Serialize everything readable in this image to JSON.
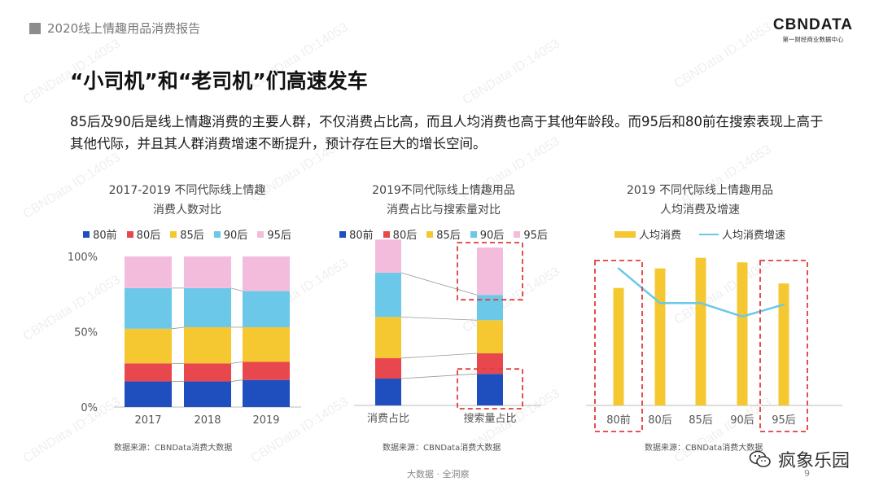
{
  "header": {
    "text": "2020线上情趣用品消费报告"
  },
  "logo": {
    "main": "CBNDATA",
    "sub": "第一财经商业数据中心"
  },
  "headline": "“小司机”和“老司机”们高速发车",
  "intro": "85后及90后是线上情趣消费的主要人群，不仅消费占比高，而且人均消费也高于其他年龄段。而95后和80前在搜索表现上高于其他代际，并且其人群消费增速不断提升，预计存在巨大的增长空间。",
  "watermark_text": "CBNData ID:14053",
  "colors": {
    "80前": "#1f4fbf",
    "80后": "#e8474e",
    "85后": "#f5c832",
    "90后": "#6bc8e8",
    "95后": "#f4bcdc",
    "line": "#6bc8e8",
    "highlight": "#e03c3c"
  },
  "chart_data": [
    {
      "type": "bar",
      "stacked": true,
      "title": "2017-2019 不同代际线上情趣消费人数对比",
      "title_lines": [
        "2017-2019 不同代际线上情趣",
        "消费人数对比"
      ],
      "categories": [
        "2017",
        "2018",
        "2019"
      ],
      "series": [
        {
          "name": "80前",
          "values": [
            17,
            17,
            18
          ]
        },
        {
          "name": "80后",
          "values": [
            12,
            12,
            12
          ]
        },
        {
          "name": "85后",
          "values": [
            23,
            24,
            23
          ]
        },
        {
          "name": "90后",
          "values": [
            27,
            26,
            24
          ]
        },
        {
          "name": "95后",
          "values": [
            21,
            21,
            23
          ]
        }
      ],
      "ylim": [
        0,
        100
      ],
      "yticks": [
        "0%",
        "50%",
        "100%"
      ],
      "source": "数据来源：CBNData消费大数据"
    },
    {
      "type": "bar",
      "stacked": true,
      "title": "2019不同代际线上情趣用品消费占比与搜索量对比",
      "title_lines": [
        "2019不同代际线上情趣用品",
        "消费占比与搜索量对比"
      ],
      "categories": [
        "消费占比",
        "搜索量占比"
      ],
      "series": [
        {
          "name": "80前",
          "values": [
            17,
            20
          ]
        },
        {
          "name": "80后",
          "values": [
            13,
            13
          ]
        },
        {
          "name": "85后",
          "values": [
            26,
            21
          ]
        },
        {
          "name": "90后",
          "values": [
            28,
            16
          ]
        },
        {
          "name": "95后",
          "values": [
            21,
            30
          ]
        }
      ],
      "ylim": [
        0,
        100
      ],
      "highlighted": [
        "搜索量占比:80前",
        "搜索量占比:95后"
      ],
      "source": "数据来源：CBNData消费大数据"
    },
    {
      "type": "bar",
      "title": "2019 不同代际线上情趣用品人均消费及增速",
      "title_lines": [
        "2019 不同代际线上情趣用品",
        "人均消费及增速"
      ],
      "categories": [
        "80前",
        "80后",
        "85后",
        "90后",
        "95后"
      ],
      "series": [
        {
          "name": "人均消费",
          "type": "bar",
          "values": [
            0.78,
            0.91,
            0.98,
            0.95,
            0.81
          ]
        },
        {
          "name": "人均消费增速",
          "type": "line",
          "values": [
            0.91,
            0.68,
            0.68,
            0.59,
            0.67
          ]
        }
      ],
      "ylim": [
        0,
        1
      ],
      "highlighted": [
        "80前",
        "95后"
      ],
      "source": "数据来源：CBNData消费大数据"
    }
  ],
  "footer": {
    "text": "大数据 · 全洞察",
    "page": "9"
  },
  "brand": {
    "name": "疯象乐园"
  }
}
